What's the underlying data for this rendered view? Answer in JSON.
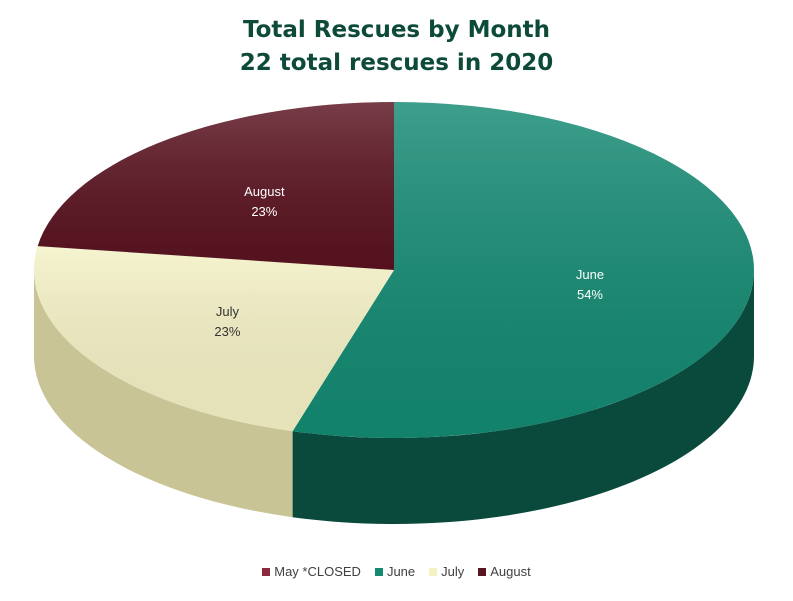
{
  "chart_data": {
    "type": "pie",
    "title": "Total Rescues by Month",
    "subtitle": "22 total rescues in 2020",
    "categories": [
      "May *CLOSED",
      "June",
      "July",
      "August"
    ],
    "values": [
      0,
      12,
      5,
      5
    ],
    "percent_labels": [
      "0%",
      "54%",
      "23%",
      "23%"
    ],
    "colors": [
      "#8b2a3c",
      "#138a72",
      "#f5f2c6",
      "#5a1320"
    ],
    "side_colors": [
      "#4a1220",
      "#0a4a3c",
      "#c9c495",
      "#2e0810"
    ],
    "label_colors": [
      "#ffffff",
      "#ffffff",
      "#333333",
      "#ffffff"
    ],
    "style": "3d-perspective",
    "legend_position": "bottom"
  }
}
